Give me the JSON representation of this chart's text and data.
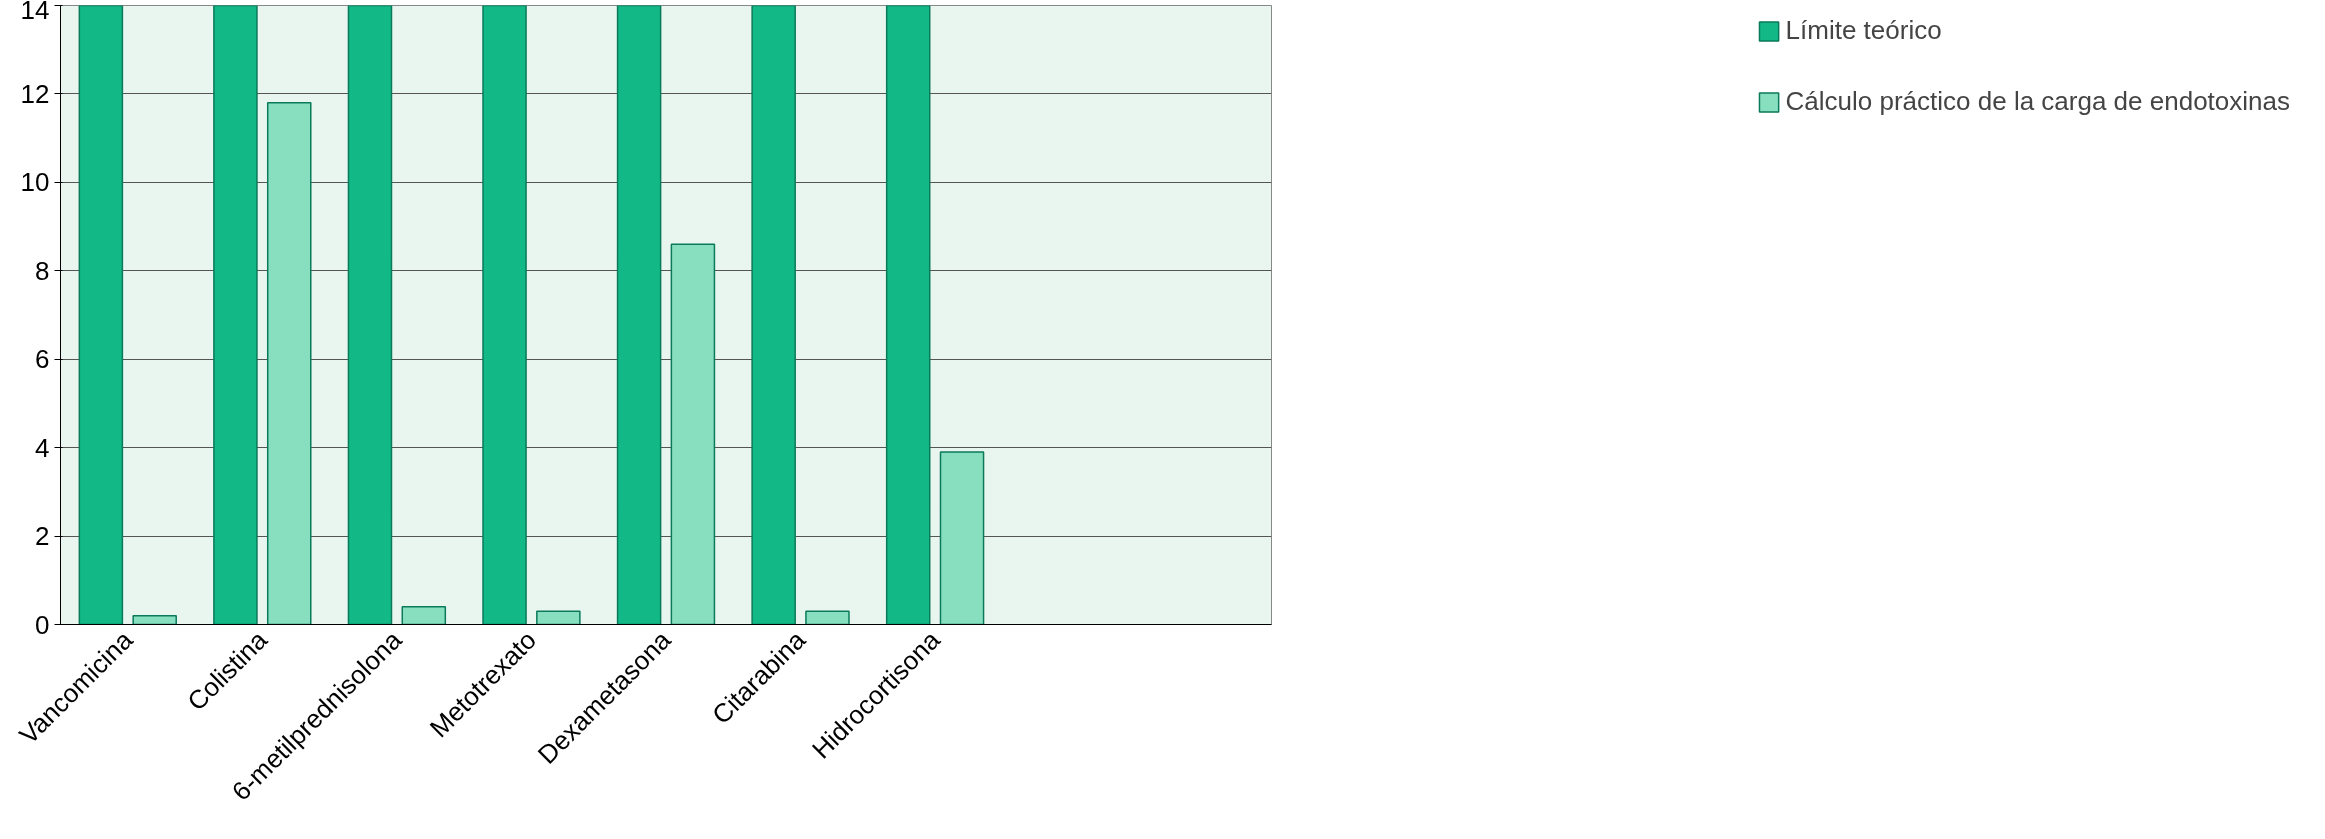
{
  "chart_data": {
    "type": "bar",
    "categories": [
      "Vancomicina",
      "Colistina",
      "6-metilprednisolona",
      "Metotrexato",
      "Dexametasona",
      "Citarabina",
      "Hidrocortisona",
      null,
      null
    ],
    "series": [
      {
        "name": "Límite teórico",
        "color": "#12b886",
        "values": [
          14,
          14,
          14,
          14,
          14,
          14,
          14,
          null,
          null
        ]
      },
      {
        "name": "Cálculo práctico de la carga de endotoxinas",
        "color": "#88dfc0",
        "values": [
          0.2,
          11.8,
          0.4,
          0.3,
          8.6,
          0.3,
          3.9,
          null,
          null
        ]
      }
    ],
    "ylim": [
      0,
      14
    ],
    "yticks": [
      0,
      2,
      4,
      6,
      8,
      10,
      12,
      14
    ],
    "grid": "y",
    "legend": "right"
  }
}
